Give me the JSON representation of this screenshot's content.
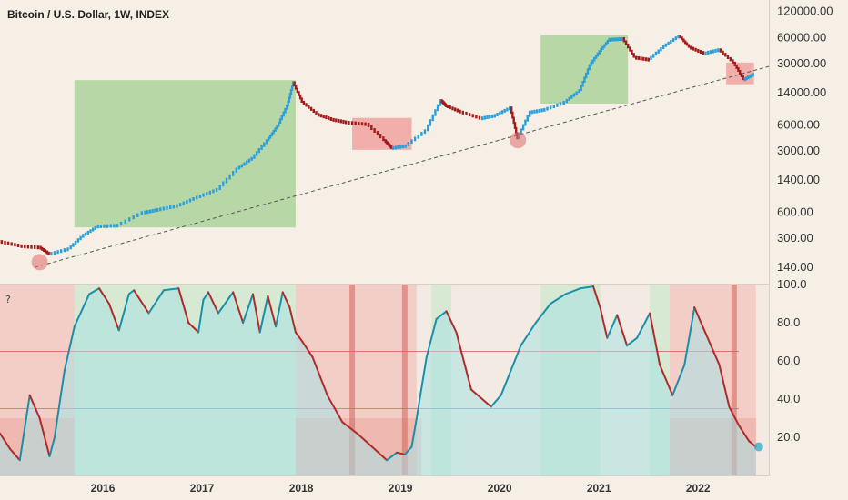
{
  "title": "Bitcoin / U.S. Dollar, 1W, INDEX",
  "help_icon": "?",
  "colors": {
    "background": "#f6efe6",
    "panel": "#f3ebe3",
    "up": "#2a9fd8",
    "down": "#a31b1b",
    "green_zone": "#8fc77d",
    "red_zone": "#ef8a8a",
    "teal_fill": "#a8e2e4",
    "red_fill": "#f2a8a0",
    "osc_up": "#1a8fa8",
    "osc_down": "#b02a2a"
  },
  "chart_data": [
    {
      "type": "line",
      "title": "Bitcoin / U.S. Dollar, 1W, INDEX",
      "scale": "log",
      "ylim": [
        100,
        140000
      ],
      "xlim": [
        2015.0,
        2022.75
      ],
      "x_tick_labels": [
        "2016",
        "2017",
        "2018",
        "2019",
        "2020",
        "2021",
        "2022"
      ],
      "x_ticks": [
        2016,
        2017,
        2018,
        2019,
        2020,
        2021,
        2022
      ],
      "y_tick_labels": [
        "120000.00",
        "60000.00",
        "30000.00",
        "14000.00",
        "6000.00",
        "3000.00",
        "1400.00",
        "600.00",
        "300.00",
        "140.00"
      ],
      "y_ticks": [
        120000,
        60000,
        30000,
        14000,
        6000,
        3000,
        1400,
        600,
        300,
        140
      ],
      "x": [
        2015.0,
        2015.2,
        2015.4,
        2015.5,
        2015.7,
        2015.85,
        2016.0,
        2016.2,
        2016.45,
        2016.6,
        2016.8,
        2017.0,
        2017.2,
        2017.4,
        2017.55,
        2017.7,
        2017.8,
        2017.9,
        2017.96,
        2018.05,
        2018.2,
        2018.35,
        2018.5,
        2018.7,
        2018.88,
        2018.95,
        2019.1,
        2019.3,
        2019.45,
        2019.5,
        2019.65,
        2019.85,
        2020.0,
        2020.15,
        2020.22,
        2020.35,
        2020.5,
        2020.7,
        2020.85,
        2020.95,
        2021.05,
        2021.15,
        2021.28,
        2021.4,
        2021.55,
        2021.7,
        2021.85,
        2021.95,
        2022.1,
        2022.25,
        2022.4,
        2022.5,
        2022.6
      ],
      "values": [
        280,
        250,
        240,
        200,
        230,
        330,
        420,
        430,
        600,
        650,
        720,
        900,
        1100,
        1900,
        2500,
        4000,
        5800,
        10000,
        18500,
        11000,
        8000,
        7000,
        6500,
        6200,
        4000,
        3300,
        3500,
        5200,
        11500,
        10000,
        8500,
        7200,
        7800,
        9500,
        4200,
        8500,
        9100,
        11000,
        15000,
        29000,
        42000,
        58000,
        59000,
        36000,
        34000,
        48000,
        63000,
        47000,
        40000,
        44000,
        31000,
        20000,
        23000
      ],
      "annotations": {
        "green_zones": [
          [
            2015.75,
            2017.98,
            400,
            19500
          ],
          [
            2020.45,
            2021.33,
            10500,
            64000
          ]
        ],
        "red_zones": [
          [
            2018.55,
            2019.15,
            3100,
            7200
          ],
          [
            2022.32,
            2022.6,
            17500,
            31000
          ]
        ],
        "trendline": [
          [
            2015.35,
            140
          ],
          [
            2022.75,
            28000
          ]
        ],
        "circles": [
          [
            2015.4,
            160
          ],
          [
            2020.22,
            4000
          ]
        ]
      }
    },
    {
      "type": "line",
      "ylim": [
        0,
        100
      ],
      "y_tick_labels": [
        "100.0",
        "80.0",
        "60.0",
        "40.0",
        "20.0"
      ],
      "y_ticks": [
        100,
        80,
        60,
        40,
        20
      ],
      "x": [
        2015.0,
        2015.1,
        2015.2,
        2015.3,
        2015.4,
        2015.5,
        2015.55,
        2015.65,
        2015.75,
        2015.9,
        2016.0,
        2016.1,
        2016.2,
        2016.3,
        2016.35,
        2016.5,
        2016.65,
        2016.8,
        2016.9,
        2017.0,
        2017.05,
        2017.1,
        2017.2,
        2017.35,
        2017.45,
        2017.55,
        2017.62,
        2017.7,
        2017.78,
        2017.85,
        2017.92,
        2017.98,
        2018.05,
        2018.15,
        2018.3,
        2018.45,
        2018.6,
        2018.75,
        2018.9,
        2019.0,
        2019.08,
        2019.15,
        2019.2,
        2019.3,
        2019.4,
        2019.5,
        2019.6,
        2019.75,
        2019.95,
        2020.05,
        2020.15,
        2020.25,
        2020.4,
        2020.55,
        2020.7,
        2020.85,
        2020.98,
        2021.05,
        2021.12,
        2021.22,
        2021.32,
        2021.42,
        2021.55,
        2021.65,
        2021.78,
        2021.9,
        2022.0,
        2022.1,
        2022.25,
        2022.35,
        2022.45,
        2022.55,
        2022.62
      ],
      "values": [
        22,
        14,
        8,
        42,
        30,
        10,
        20,
        55,
        78,
        95,
        98,
        90,
        76,
        95,
        97,
        85,
        97,
        98,
        80,
        75,
        92,
        96,
        85,
        96,
        80,
        95,
        75,
        94,
        78,
        96,
        88,
        75,
        70,
        62,
        42,
        28,
        22,
        15,
        8,
        12,
        11,
        15,
        30,
        62,
        82,
        86,
        75,
        45,
        36,
        42,
        55,
        68,
        80,
        90,
        95,
        98,
        99,
        88,
        72,
        84,
        68,
        72,
        85,
        58,
        42,
        58,
        88,
        76,
        58,
        36,
        26,
        18,
        15
      ],
      "thresholds": [
        65,
        35
      ]
    }
  ]
}
